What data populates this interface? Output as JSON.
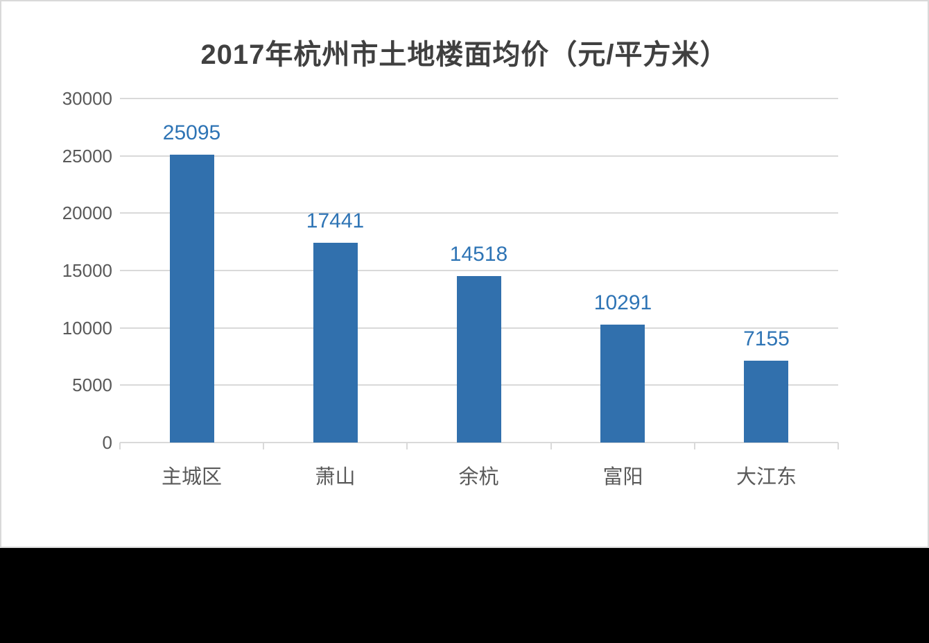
{
  "page": {
    "background_color": "#000000",
    "card_background": "#ffffff",
    "card_border_color": "#d9d9d9"
  },
  "chart_data": {
    "type": "bar",
    "title": "2017年杭州市土地楼面均价（元/平方米）",
    "categories": [
      "主城区",
      "萧山",
      "余杭",
      "富阳",
      "大江东"
    ],
    "values": [
      25095,
      17441,
      14518,
      10291,
      7155
    ],
    "data_labels": [
      "25095",
      "17441",
      "14518",
      "10291",
      "7155"
    ],
    "xlabel": "",
    "ylabel": "",
    "ylim": [
      0,
      30000
    ],
    "yticks": [
      0,
      5000,
      10000,
      15000,
      20000,
      25000,
      30000
    ],
    "ytick_labels": [
      "0",
      "5000",
      "10000",
      "15000",
      "20000",
      "25000",
      "30000"
    ],
    "grid": true,
    "legend": false,
    "bar_color": "#3170ad",
    "data_label_color": "#2e74b5",
    "axis_text_color": "#595959",
    "gridline_color": "#d9d9d9",
    "title_color": "#404040"
  }
}
